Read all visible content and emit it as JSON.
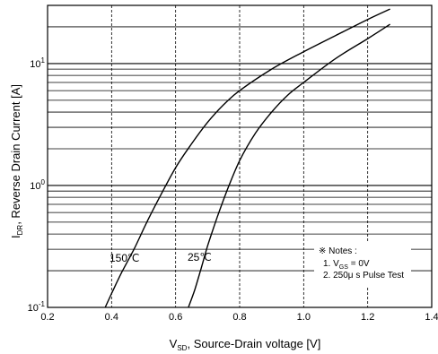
{
  "chart_data": {
    "type": "line",
    "xlabel": {
      "main": "V",
      "sub": "SD",
      "rest": ", Source-Drain voltage [V]"
    },
    "ylabel": {
      "main": "I",
      "sub": "DR",
      "rest": ", Reverse Drain Current [A]"
    },
    "xlim": [
      0.2,
      1.4
    ],
    "ylim": [
      0.1,
      30
    ],
    "yscale": "log",
    "grid": true,
    "x_ticks": [
      "0.2",
      "0.4",
      "0.6",
      "0.8",
      "1.0",
      "1.2",
      "1.4"
    ],
    "y_ticks": [
      {
        "base": "10",
        "exp": "-1",
        "value": 0.1
      },
      {
        "base": "10",
        "exp": "0",
        "value": 1
      },
      {
        "base": "10",
        "exp": "1",
        "value": 10
      }
    ],
    "series": [
      {
        "name": "150℃",
        "x": [
          0.38,
          0.4,
          0.43,
          0.47,
          0.51,
          0.55,
          0.6,
          0.65,
          0.7,
          0.75,
          0.8,
          0.9,
          1.0,
          1.1,
          1.2,
          1.27
        ],
        "y": [
          0.1,
          0.13,
          0.19,
          0.3,
          0.5,
          0.8,
          1.4,
          2.2,
          3.3,
          4.6,
          6.0,
          9.0,
          12.5,
          17.0,
          23.0,
          28.0
        ]
      },
      {
        "name": "25℃",
        "x": [
          0.64,
          0.66,
          0.68,
          0.7,
          0.73,
          0.76,
          0.8,
          0.85,
          0.9,
          0.95,
          1.0,
          1.1,
          1.2,
          1.27
        ],
        "y": [
          0.1,
          0.14,
          0.21,
          0.32,
          0.55,
          0.9,
          1.6,
          2.7,
          4.0,
          5.5,
          7.0,
          11.0,
          16.0,
          21.0
        ]
      }
    ],
    "annotations": {
      "curve_labels": [
        "150℃",
        "25℃"
      ],
      "notes_title": "※ Notes :",
      "note1": {
        "pre": "1. V",
        "sub": "GS",
        "post": " = 0V"
      },
      "note2": "2. 250μ s Pulse Test"
    }
  }
}
